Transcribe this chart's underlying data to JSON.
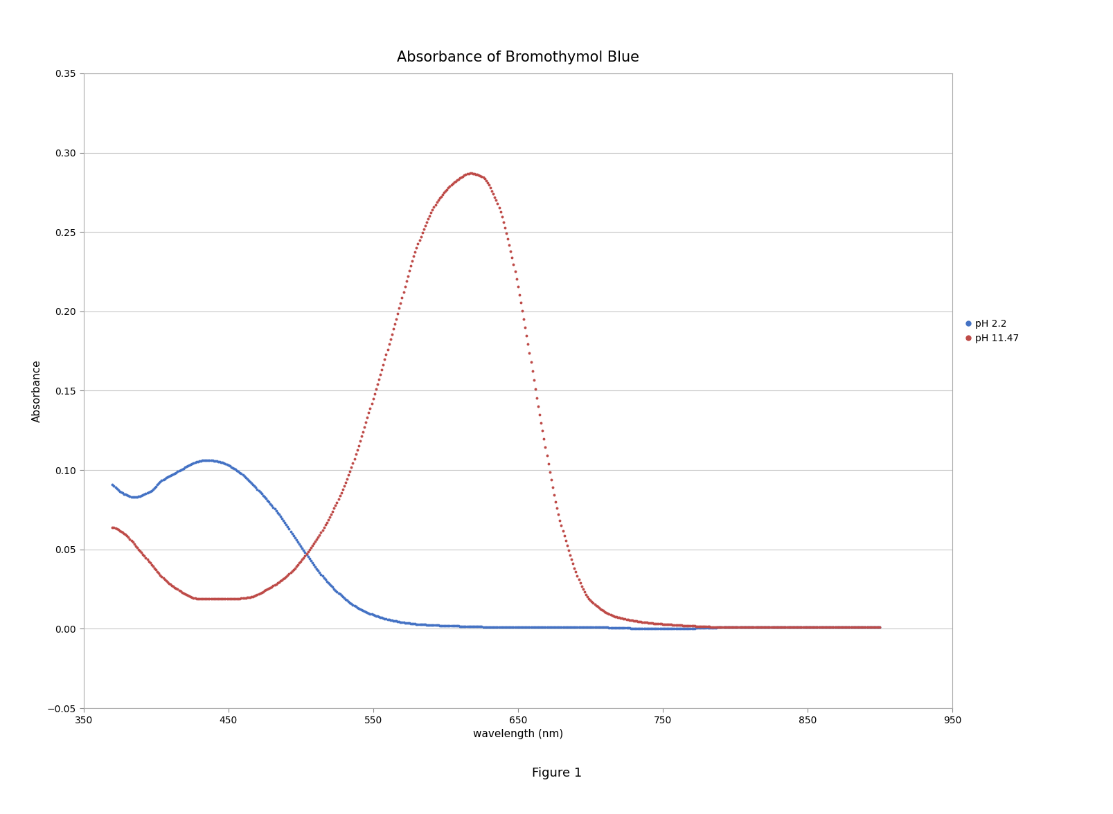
{
  "title": "Absorbance of Bromothymol Blue",
  "xlabel": "wavelength (nm)",
  "ylabel": "Absorbance",
  "figure_caption": "Figure 1",
  "xlim": [
    350,
    950
  ],
  "ylim": [
    -0.05,
    0.35
  ],
  "xticks": [
    350,
    450,
    550,
    650,
    750,
    850,
    950
  ],
  "yticks": [
    -0.05,
    0.0,
    0.05,
    0.1,
    0.15,
    0.2,
    0.25,
    0.3,
    0.35
  ],
  "legend": [
    {
      "label": "pH 2.2",
      "color": "#4472C4"
    },
    {
      "label": "pH 11.47",
      "color": "#BE4B48"
    }
  ],
  "background_color": "#ffffff",
  "plot_bg_color": "#ffffff",
  "grid_color": "#C8C8C8",
  "border_color": "#AAAAAA",
  "title_fontsize": 15,
  "axis_label_fontsize": 11,
  "tick_fontsize": 10,
  "legend_fontsize": 10,
  "caption_fontsize": 13
}
